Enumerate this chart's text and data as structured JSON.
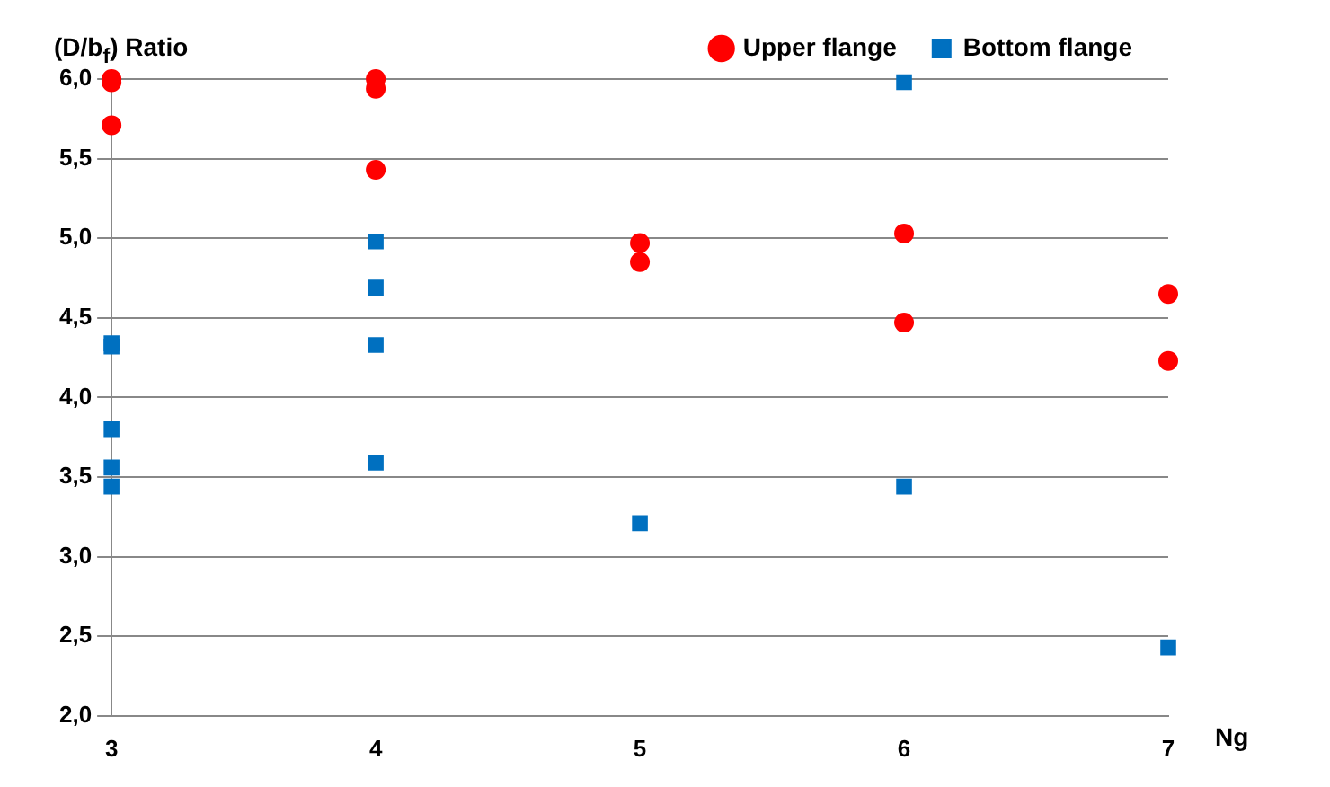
{
  "chart_data": {
    "type": "scatter",
    "ylabel": "(D/b$_{f}$) Ratio",
    "xlabel": "Ng",
    "series": [
      {
        "name": "Upper flange",
        "color": "#ff0000",
        "marker": "circle",
        "x": [
          3,
          3,
          3,
          4,
          4,
          4,
          5,
          5,
          6,
          6,
          7,
          7
        ],
        "values": [
          6.0,
          5.98,
          5.71,
          6.0,
          5.94,
          5.43,
          4.97,
          4.85,
          5.03,
          4.47,
          4.65,
          4.23
        ]
      },
      {
        "name": "Bottom flange",
        "color": "#0070c0",
        "marker": "square",
        "x": [
          3,
          3,
          3,
          3,
          3,
          4,
          4,
          4,
          4,
          5,
          6,
          6,
          7
        ],
        "values": [
          4.34,
          4.32,
          3.8,
          3.56,
          3.44,
          4.98,
          4.69,
          4.33,
          3.59,
          3.21,
          5.98,
          3.44,
          2.43
        ]
      }
    ],
    "xlim": [
      3,
      7
    ],
    "xticks": [
      3,
      4,
      5,
      6,
      7
    ],
    "ylim": [
      2,
      6
    ],
    "yticks": [
      {
        "value": 2,
        "label": "2,0"
      },
      {
        "value": 2.5,
        "label": "2,5"
      },
      {
        "value": 3,
        "label": "3,0"
      },
      {
        "value": 3.5,
        "label": "3,5"
      },
      {
        "value": 4,
        "label": "4,0"
      },
      {
        "value": 4.5,
        "label": "4,5"
      },
      {
        "value": 5,
        "label": "5,0"
      },
      {
        "value": 5.5,
        "label": "5,5"
      },
      {
        "value": 6,
        "label": "6,0"
      }
    ],
    "grid": "y",
    "legend": "top right"
  }
}
